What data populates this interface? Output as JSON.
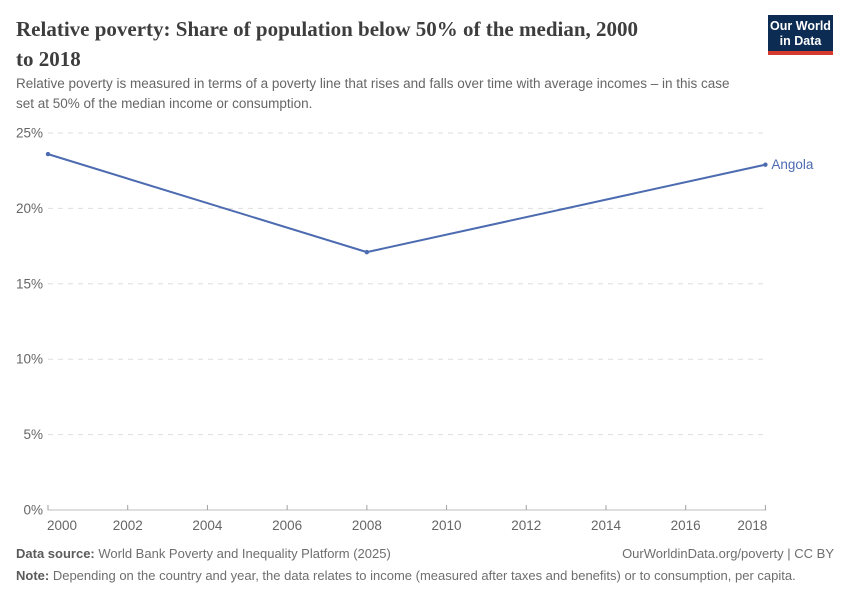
{
  "header": {
    "title_lines": [
      "Relative poverty: Share of population below 50% of the median, 2000",
      "to 2018"
    ],
    "subtitle_lines": [
      "Relative poverty is measured in terms of a poverty line that rises and falls over time with average incomes – in this case",
      "set at 50% of the median income or consumption."
    ],
    "logo": {
      "line1": "Our World",
      "line2": "in Data",
      "bg_color": "#0d2c53",
      "bar_color": "#d63a2f"
    }
  },
  "chart_data": {
    "type": "line",
    "title": "Relative poverty: Share of population below 50% of the median, 2000 to 2018",
    "xlabel": "",
    "ylabel": "",
    "xlim": [
      2000,
      2018
    ],
    "ylim": [
      0,
      25
    ],
    "x_ticks": [
      2000,
      2002,
      2004,
      2006,
      2008,
      2010,
      2012,
      2014,
      2016,
      2018
    ],
    "y_ticks": [
      0,
      5,
      10,
      15,
      20,
      25
    ],
    "y_tick_suffix": "%",
    "grid": "horizontal-dashed",
    "legend_position": "end-of-line-label",
    "series": [
      {
        "name": "Angola",
        "color": "#4c6bb0",
        "points": [
          {
            "x": 2000,
            "y": 23.6
          },
          {
            "x": 2008,
            "y": 17.1
          },
          {
            "x": 2018,
            "y": 22.9
          }
        ]
      }
    ],
    "theme": {
      "grid_color": "#dedede",
      "axis_color": "#bcbcbc",
      "tick_color": "#a0a0a0",
      "label_color": "#666666"
    }
  },
  "footer": {
    "datasource_label": "Data source:",
    "datasource_value": " World Bank Poverty and Inequality Platform (2025)",
    "link": "OurWorldinData.org/poverty | CC BY",
    "note_label": "Note:",
    "note_value": " Depending on the country and year, the data relates to income (measured after taxes and benefits) or to consumption, per capita."
  }
}
